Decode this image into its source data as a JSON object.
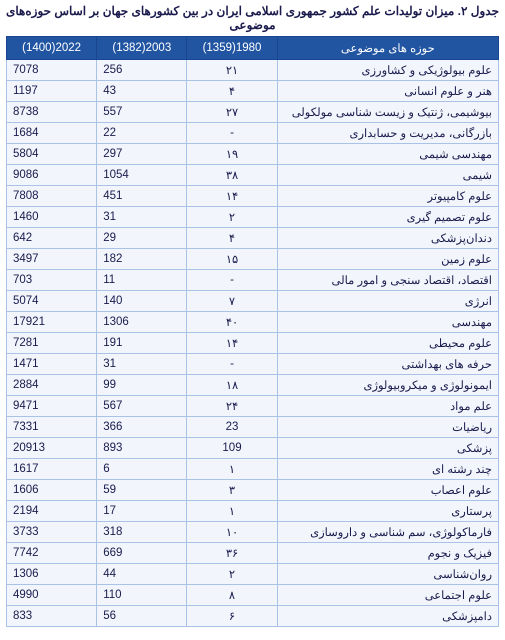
{
  "title": "جدول ۲. میزان تولیدات علم کشور جمهوری اسلامی ایران در بین کشورهای جهان بر اساس حوزه‌های موضوعی",
  "columns": {
    "subject": "حوزه های موضوعی",
    "y1980": "1980(1359)",
    "y2003": "2003(1382)",
    "y2022": "2022(1400)"
  },
  "rows": [
    {
      "subject": "علوم بیولوژیکی و کشاورزی",
      "y1980": "۲۱",
      "y2003": "256",
      "y2022": "7078"
    },
    {
      "subject": "هنر و علوم انسانی",
      "y1980": "۴",
      "y2003": "43",
      "y2022": "1197"
    },
    {
      "subject": "بیوشیمی، ژنتیک و زیست شناسی مولکولی",
      "y1980": "۲۷",
      "y2003": "557",
      "y2022": "8738"
    },
    {
      "subject": "بازرگانی، مدیریت و حسابداری",
      "y1980": "-",
      "y2003": "22",
      "y2022": "1684"
    },
    {
      "subject": "مهندسی شیمی",
      "y1980": "۱۹",
      "y2003": "297",
      "y2022": "5804"
    },
    {
      "subject": "شیمی",
      "y1980": "۳۸",
      "y2003": "1054",
      "y2022": "9086"
    },
    {
      "subject": "علوم کامپیوتر",
      "y1980": "۱۴",
      "y2003": "451",
      "y2022": "7808"
    },
    {
      "subject": "علوم تصمیم گیری",
      "y1980": "۲",
      "y2003": "31",
      "y2022": "1460"
    },
    {
      "subject": "دندان‌پزشکی",
      "y1980": "۴",
      "y2003": "29",
      "y2022": "642"
    },
    {
      "subject": "علوم زمین",
      "y1980": "۱۵",
      "y2003": "182",
      "y2022": "3497"
    },
    {
      "subject": "اقتصاد، اقتصاد سنجی و امور مالی",
      "y1980": "-",
      "y2003": "11",
      "y2022": "703"
    },
    {
      "subject": "انرژی",
      "y1980": "۷",
      "y2003": "140",
      "y2022": "5074"
    },
    {
      "subject": "مهندسی",
      "y1980": "۴۰",
      "y2003": "1306",
      "y2022": "17921"
    },
    {
      "subject": "علوم محیطی",
      "y1980": "۱۴",
      "y2003": "191",
      "y2022": "7281"
    },
    {
      "subject": "حرفه های بهداشتی",
      "y1980": "-",
      "y2003": "31",
      "y2022": "1471"
    },
    {
      "subject": "ایمونولوژی و میکروبیولوژی",
      "y1980": "۱۸",
      "y2003": "99",
      "y2022": "2884"
    },
    {
      "subject": "علم مواد",
      "y1980": "۲۴",
      "y2003": "567",
      "y2022": "9471"
    },
    {
      "subject": "ریاضیات",
      "y1980": "23",
      "y2003": "366",
      "y2022": "7331"
    },
    {
      "subject": "پزشکی",
      "y1980": "109",
      "y2003": "893",
      "y2022": "20913"
    },
    {
      "subject": "چند رشته ای",
      "y1980": "۱",
      "y2003": "6",
      "y2022": "1617"
    },
    {
      "subject": "علوم اعصاب",
      "y1980": "۳",
      "y2003": "59",
      "y2022": "1606"
    },
    {
      "subject": "پرستاری",
      "y1980": "۱",
      "y2003": "17",
      "y2022": "2194"
    },
    {
      "subject": "فارماکولوژی، سم شناسی و داروسازی",
      "y1980": "۱۰",
      "y2003": "318",
      "y2022": "3733"
    },
    {
      "subject": "فیزیک و نجوم",
      "y1980": "۳۶",
      "y2003": "669",
      "y2022": "7742"
    },
    {
      "subject": "روان‌شناسی",
      "y1980": "۲",
      "y2003": "44",
      "y2022": "1306"
    },
    {
      "subject": "علوم اجتماعی",
      "y1980": "۸",
      "y2003": "110",
      "y2022": "4990"
    },
    {
      "subject": "دامپزشکی",
      "y1980": "۶",
      "y2003": "56",
      "y2022": "833"
    }
  ]
}
